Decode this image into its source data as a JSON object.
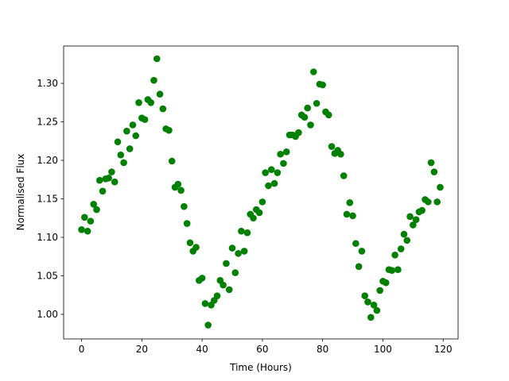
{
  "chart_data": {
    "type": "scatter",
    "x_label": "Time (Hours)",
    "y_label": "Normalised Flux",
    "color": "#008000",
    "x": [
      0,
      1,
      2,
      3,
      4,
      5,
      6,
      7,
      8,
      9,
      10,
      11,
      12,
      13,
      14,
      15,
      16,
      17,
      18,
      19,
      20,
      21,
      22,
      23,
      24,
      25,
      26,
      27,
      28,
      29,
      30,
      31,
      32,
      33,
      34,
      35,
      36,
      37,
      38,
      39,
      40,
      41,
      42,
      43,
      44,
      45,
      46,
      47,
      48,
      49,
      50,
      51,
      52,
      53,
      54,
      55,
      56,
      57,
      58,
      59,
      60,
      61,
      62,
      63,
      64,
      65,
      66,
      67,
      68,
      69,
      70,
      71,
      72,
      73,
      74,
      75,
      76,
      77,
      78,
      79,
      80,
      81,
      82,
      83,
      84,
      85,
      86,
      87,
      88,
      89,
      90,
      91,
      92,
      93,
      94,
      95,
      96,
      97,
      98,
      99,
      100,
      101,
      102,
      103,
      104,
      105,
      106,
      107,
      108,
      109,
      110,
      111,
      112,
      113,
      114,
      115,
      116,
      117,
      118,
      119
    ],
    "values": [
      1.11,
      1.126,
      1.108,
      1.121,
      1.143,
      1.136,
      1.174,
      1.16,
      1.176,
      1.177,
      1.185,
      1.172,
      1.224,
      1.207,
      1.197,
      1.238,
      1.215,
      1.246,
      1.232,
      1.275,
      1.255,
      1.253,
      1.279,
      1.275,
      1.304,
      1.332,
      1.286,
      1.267,
      1.241,
      1.239,
      1.199,
      1.165,
      1.169,
      1.161,
      1.14,
      1.118,
      1.093,
      1.082,
      1.087,
      1.044,
      1.047,
      1.014,
      0.986,
      1.012,
      1.018,
      1.024,
      1.044,
      1.038,
      1.066,
      1.032,
      1.086,
      1.054,
      1.079,
      1.108,
      1.082,
      1.106,
      1.13,
      1.125,
      1.136,
      1.132,
      1.146,
      1.184,
      1.167,
      1.188,
      1.17,
      1.184,
      1.208,
      1.196,
      1.211,
      1.233,
      1.233,
      1.231,
      1.236,
      1.259,
      1.256,
      1.268,
      1.246,
      1.315,
      1.274,
      1.299,
      1.298,
      1.263,
      1.259,
      1.218,
      1.209,
      1.213,
      1.208,
      1.18,
      1.13,
      1.145,
      1.128,
      1.092,
      1.062,
      1.082,
      1.024,
      1.016,
      0.996,
      1.012,
      1.005,
      1.031,
      1.043,
      1.041,
      1.058,
      1.057,
      1.077,
      1.058,
      1.085,
      1.104,
      1.096,
      1.127,
      1.116,
      1.123,
      1.133,
      1.135,
      1.149,
      1.146,
      1.197,
      1.185,
      1.146,
      1.165
    ],
    "xlim": [
      -5.95,
      124.95
    ],
    "ylim": [
      0.968,
      1.3485
    ],
    "xticks": [
      0,
      20,
      40,
      60,
      80,
      100,
      120
    ],
    "yticks": [
      {
        "value": 1.0,
        "label": "1.00"
      },
      1.05,
      {
        "value": 1.1,
        "label": "1.10"
      },
      1.15,
      {
        "value": 1.2,
        "label": "1.20"
      },
      1.25,
      {
        "value": 1.3,
        "label": "1.30"
      }
    ]
  }
}
